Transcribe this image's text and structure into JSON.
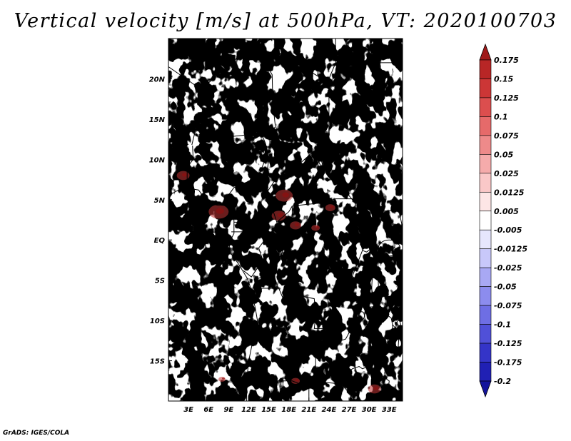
{
  "chart_data": {
    "type": "heatmap",
    "title": "Vertical velocity [m/s] at 500hPa, VT: 2020100703",
    "xlabel": "",
    "ylabel": "",
    "x_range": [
      0,
      35
    ],
    "y_range": [
      -20,
      25
    ],
    "x_ticks": [
      {
        "value": 3,
        "label": "3E"
      },
      {
        "value": 6,
        "label": "6E"
      },
      {
        "value": 9,
        "label": "9E"
      },
      {
        "value": 12,
        "label": "12E"
      },
      {
        "value": 15,
        "label": "15E"
      },
      {
        "value": 18,
        "label": "18E"
      },
      {
        "value": 21,
        "label": "21E"
      },
      {
        "value": 24,
        "label": "24E"
      },
      {
        "value": 27,
        "label": "27E"
      },
      {
        "value": 30,
        "label": "30E"
      },
      {
        "value": 33,
        "label": "33E"
      }
    ],
    "y_ticks": [
      {
        "value": 20,
        "label": "20N"
      },
      {
        "value": 15,
        "label": "15N"
      },
      {
        "value": 10,
        "label": "10N"
      },
      {
        "value": 5,
        "label": "5N"
      },
      {
        "value": 0,
        "label": "EQ"
      },
      {
        "value": -5,
        "label": "5S"
      },
      {
        "value": -10,
        "label": "10S"
      },
      {
        "value": -15,
        "label": "15S"
      }
    ],
    "colorbar": {
      "labels": [
        "0.175",
        "0.15",
        "0.125",
        "0.1",
        "0.075",
        "0.05",
        "0.025",
        "0.0125",
        "0.005",
        "-0.005",
        "-0.0125",
        "-0.025",
        "-0.05",
        "-0.075",
        "-0.1",
        "-0.125",
        "-0.175",
        "-0.2"
      ],
      "colors": [
        "#a01a1a",
        "#b82626",
        "#cc3636",
        "#dc4e4e",
        "#e66a6a",
        "#ee8a8a",
        "#f5abab",
        "#fac8c8",
        "#fde6e6",
        "#ffffff",
        "#e6e6fd",
        "#c8c8fa",
        "#a8a8f4",
        "#8c8cee",
        "#6e6ee4",
        "#5050d8",
        "#3434c8",
        "#2020b4",
        "#14149c"
      ]
    },
    "colors": {
      "positive_mid": "#f2a0a0",
      "negative_mid": "#9a9af0",
      "border": "#000000"
    }
  },
  "credit": "GrADS: IGES/COLA"
}
